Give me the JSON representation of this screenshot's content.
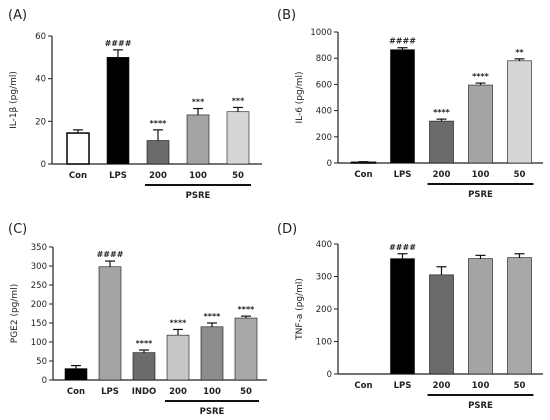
{
  "colors": {
    "Con": "#ffffff",
    "LPS": "#000000",
    "INDO": "#6b6b6b",
    "200": "#6b6b6b",
    "100": "#a4a4a4",
    "50": "#d6d6d6",
    "200_C": "#c6c6c6",
    "100_C": "#8d8d8d",
    "50_C": "#a8a8a8",
    "LPS_C": "#a4a4a4",
    "Con_C": "#000000",
    "LPS_D": "#000000",
    "200_D": "#6b6b6b",
    "100_D": "#a4a4a4",
    "50_D": "#a8a8a8"
  },
  "chart_data": [
    {
      "panel": "(A)",
      "type": "bar",
      "ylabel": "IL-1β (pg/ml)",
      "ylim": [
        0,
        60
      ],
      "yticks": [
        0,
        20,
        40,
        60
      ],
      "categories": [
        "Con",
        "LPS",
        "200",
        "100",
        "50"
      ],
      "values": [
        14.5,
        50,
        11,
        23,
        24.5
      ],
      "errors": [
        1.5,
        3.5,
        5,
        3,
        2
      ],
      "significance": [
        "",
        "####",
        "****",
        "***",
        "***"
      ],
      "fills": [
        "#ffffff",
        "#000000",
        "#6b6b6b",
        "#a4a4a4",
        "#d6d6d6"
      ],
      "group": {
        "label": "PSRE",
        "from": 2,
        "to": 4
      }
    },
    {
      "panel": "(B)",
      "type": "bar",
      "ylabel": "IL-6 (pg/ml)",
      "ylim": [
        0,
        1000
      ],
      "yticks": [
        0,
        200,
        400,
        600,
        800,
        1000
      ],
      "categories": [
        "Con",
        "LPS",
        "200",
        "100",
        "50"
      ],
      "values": [
        5,
        865,
        320,
        595,
        780
      ],
      "errors": [
        5,
        15,
        15,
        15,
        15
      ],
      "significance": [
        "",
        "####",
        "****",
        "****",
        "**"
      ],
      "fills": [
        "#ffffff",
        "#000000",
        "#6b6b6b",
        "#a4a4a4",
        "#d6d6d6"
      ],
      "group": {
        "label": "PSRE",
        "from": 2,
        "to": 4
      }
    },
    {
      "panel": "(C)",
      "type": "bar",
      "ylabel": "PGE2 (pg/ml)",
      "ylim": [
        0,
        350
      ],
      "yticks": [
        0,
        50,
        100,
        150,
        200,
        250,
        300,
        350
      ],
      "categories": [
        "Con",
        "LPS",
        "INDO",
        "200",
        "100",
        "50"
      ],
      "values": [
        30,
        298,
        72,
        118,
        140,
        163
      ],
      "errors": [
        8,
        15,
        7,
        15,
        10,
        5
      ],
      "significance": [
        "",
        "####",
        "****",
        "****",
        "****",
        "****"
      ],
      "fills": [
        "#000000",
        "#a4a4a4",
        "#6b6b6b",
        "#c6c6c6",
        "#8d8d8d",
        "#a8a8a8"
      ],
      "group": {
        "label": "PSRE",
        "from": 3,
        "to": 5
      }
    },
    {
      "panel": "(D)",
      "type": "bar",
      "ylabel": "TNF-a (pg/ml)",
      "ylim": [
        0,
        400
      ],
      "yticks": [
        0,
        100,
        200,
        300,
        400
      ],
      "categories": [
        "Con",
        "LPS",
        "200",
        "100",
        "50"
      ],
      "values": [
        0,
        355,
        305,
        355,
        358
      ],
      "errors": [
        0,
        15,
        25,
        10,
        12
      ],
      "significance": [
        "",
        "####",
        "",
        "",
        ""
      ],
      "fills": [
        "#ffffff",
        "#000000",
        "#6b6b6b",
        "#a4a4a4",
        "#a8a8a8"
      ],
      "group": {
        "label": "PSRE",
        "from": 2,
        "to": 4
      }
    }
  ]
}
